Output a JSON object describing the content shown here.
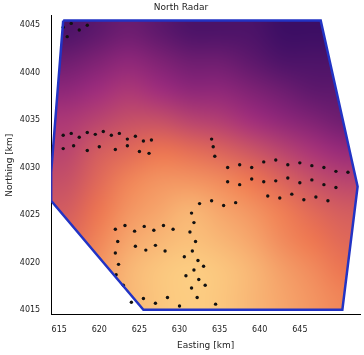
{
  "chart_data": {
    "type": "scatter",
    "title": "North Radar",
    "x_label": "Easting [km]",
    "y_label": "Northing [km]",
    "xlim": [
      614,
      652.5
    ],
    "ylim": [
      4014.5,
      4046
    ],
    "xticks": [
      615,
      620,
      625,
      630,
      635,
      640,
      645
    ],
    "yticks": [
      4015,
      4020,
      4025,
      4030,
      4035,
      4040,
      4045
    ],
    "grid": false,
    "cells": {
      "x_edges": [
        614,
        617.85,
        621.7,
        625.55,
        629.4,
        633.25,
        637.1,
        640.95,
        644.8,
        648.65,
        652.5
      ],
      "y_edges": [
        4014.5,
        4017.65,
        4020.8,
        4023.95,
        4027.1,
        4030.25,
        4033.4,
        4036.55,
        4039.7,
        4042.85,
        4046
      ],
      "values": [
        [
          0.7,
          0.8,
          0.85,
          0.9,
          0.92,
          0.9,
          0.85,
          0.8,
          0.75,
          0.7
        ],
        [
          0.65,
          0.75,
          0.85,
          0.9,
          0.92,
          0.9,
          0.85,
          0.78,
          0.72,
          0.65
        ],
        [
          0.6,
          0.7,
          0.8,
          0.85,
          0.88,
          0.85,
          0.8,
          0.72,
          0.66,
          0.6
        ],
        [
          0.55,
          0.65,
          0.75,
          0.8,
          0.85,
          0.8,
          0.75,
          0.68,
          0.6,
          0.55
        ],
        [
          0.5,
          0.6,
          0.7,
          0.75,
          0.75,
          0.72,
          0.66,
          0.58,
          0.5,
          0.45
        ],
        [
          0.45,
          0.55,
          0.6,
          0.65,
          0.62,
          0.58,
          0.52,
          0.45,
          0.38,
          0.32
        ],
        [
          0.4,
          0.45,
          0.5,
          0.5,
          0.45,
          0.42,
          0.36,
          0.3,
          0.25,
          0.2
        ],
        [
          0.3,
          0.35,
          0.4,
          0.35,
          0.3,
          0.3,
          0.25,
          0.2,
          0.15,
          0.15
        ],
        [
          0.2,
          0.25,
          0.3,
          0.25,
          0.2,
          0.2,
          0.15,
          0.1,
          0.1,
          0.1
        ],
        [
          0.1,
          0.15,
          0.2,
          0.15,
          0.1,
          0.1,
          0.1,
          0.05,
          0.05,
          0.05
        ]
      ]
    },
    "series": [
      {
        "type": "scatter",
        "color": "#111111",
        "marker": "circle",
        "x": [
          615.5,
          616.5,
          617.5,
          616,
          618.5,
          615.5,
          616.5,
          617.5,
          618.5,
          619.5,
          620.5,
          621.5,
          622.5,
          623.5,
          624.5,
          625.5,
          626.5,
          615.5,
          616.8,
          618.5,
          620,
          622,
          623.5,
          625,
          626.2,
          634,
          634.2,
          634.4,
          636,
          637.5,
          639,
          640.5,
          642,
          643.5,
          645,
          646.5,
          648,
          649.5,
          651,
          636,
          637.5,
          639,
          640.5,
          642,
          643.5,
          645,
          646.5,
          648,
          649.5,
          641,
          642.5,
          644,
          645.5,
          647,
          648.5,
          632.5,
          634,
          635.5,
          637,
          622,
          623.2,
          624.4,
          625.6,
          626.8,
          628,
          629.2,
          622.3,
          622,
          622.4,
          622.1,
          623,
          624.5,
          625.8,
          627,
          628.2,
          624,
          625.5,
          627,
          628.5,
          631.5,
          631.8,
          631.3,
          632,
          631.6,
          632.3,
          631.8,
          632.4,
          631.5,
          632.2,
          630.6,
          630.8,
          633,
          633.2,
          630,
          634.5
        ],
        "y": [
          4044.8,
          4045.2,
          4044.5,
          4043.8,
          4045,
          4033.4,
          4033.6,
          4033.2,
          4033.7,
          4033.5,
          4033.8,
          4033.4,
          4033.6,
          4033,
          4033.3,
          4032.8,
          4032.9,
          4032,
          4032.3,
          4031.8,
          4032.2,
          4031.9,
          4032.3,
          4031.7,
          4031.5,
          4033,
          4032.2,
          4031.2,
          4030,
          4030.3,
          4030,
          4030.6,
          4030.8,
          4030.3,
          4030.5,
          4030.2,
          4030,
          4029.6,
          4029.5,
          4028.5,
          4028.2,
          4028.8,
          4028.5,
          4028.6,
          4028.9,
          4028.4,
          4028.7,
          4028.2,
          4027.9,
          4027,
          4026.8,
          4027.2,
          4026.6,
          4026.9,
          4026.5,
          4026.2,
          4026.5,
          4026,
          4026.3,
          4023.5,
          4023.9,
          4023.3,
          4023.8,
          4023.4,
          4023.9,
          4023.5,
          4022.2,
          4021,
          4019.8,
          4018.7,
          4017.6,
          4021.7,
          4021.3,
          4021.8,
          4021.2,
          4015.8,
          4016.2,
          4015.7,
          4016.3,
          4025.2,
          4024.2,
          4023.2,
          4022.2,
          4021.2,
          4020.2,
          4019.2,
          4018.2,
          4017.3,
          4016.3,
          4020.6,
          4018.6,
          4019.6,
          4017.6,
          4015.4,
          4015.6
        ]
      },
      {
        "type": "line",
        "color": "#2233c4",
        "line_style": "solid",
        "x": [
          615.5,
          614,
          614,
          625.5,
          650.3,
          652.2,
          647.6,
          615.5
        ],
        "y": [
          4045.5,
          4029.5,
          4026.5,
          4015,
          4015,
          4028,
          4045.5,
          4045.5
        ]
      }
    ]
  }
}
